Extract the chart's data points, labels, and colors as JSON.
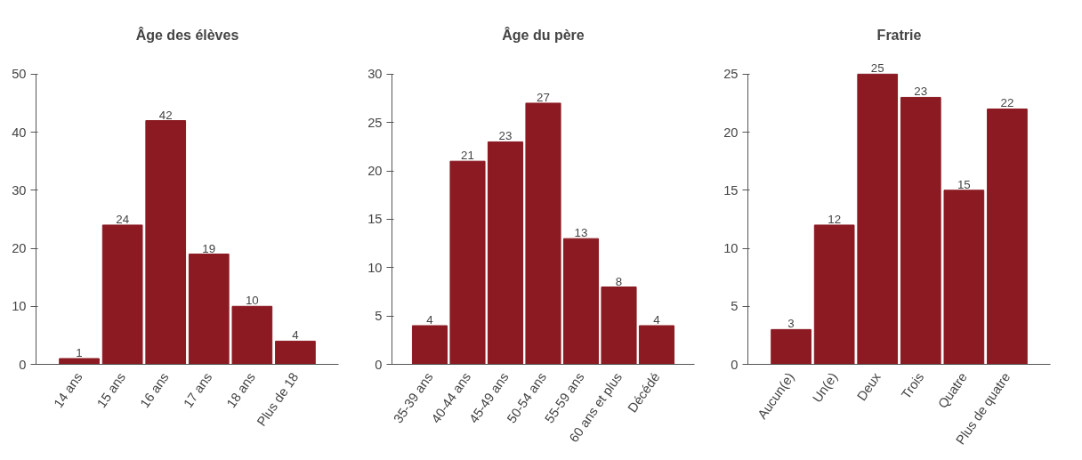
{
  "chart_data": [
    {
      "type": "bar",
      "title": "Âge des élèves",
      "categories": [
        "14 ans",
        "15 ans",
        "16 ans",
        "17 ans",
        "18 ans",
        "Plus de 18"
      ],
      "values": [
        1,
        24,
        42,
        19,
        10,
        4
      ],
      "color": "#8b1a22",
      "ylim": [
        0,
        50
      ],
      "yticks": [
        0,
        10,
        20,
        30,
        40,
        50
      ],
      "grid": false,
      "data_labels": true
    },
    {
      "type": "bar",
      "title": "Âge du père",
      "categories": [
        "35-39 ans",
        "40-44 ans",
        "45-49 ans",
        "50-54 ans",
        "55-59 ans",
        "60 ans et plus",
        "Décédé"
      ],
      "values": [
        4,
        21,
        23,
        27,
        13,
        8,
        4
      ],
      "color": "#8b1a22",
      "ylim": [
        0,
        30
      ],
      "yticks": [
        0,
        5,
        10,
        15,
        20,
        25,
        30
      ],
      "grid": false,
      "data_labels": true
    },
    {
      "type": "bar",
      "title": "Fratrie",
      "categories": [
        "Aucun(e)",
        "Un(e)",
        "Deux",
        "Trois",
        "Quatre",
        "Plus de quatre"
      ],
      "values": [
        3,
        12,
        25,
        23,
        15,
        22
      ],
      "color": "#8b1a22",
      "ylim": [
        0,
        25
      ],
      "yticks": [
        0,
        5,
        10,
        15,
        20,
        25
      ],
      "grid": false,
      "data_labels": true
    }
  ]
}
